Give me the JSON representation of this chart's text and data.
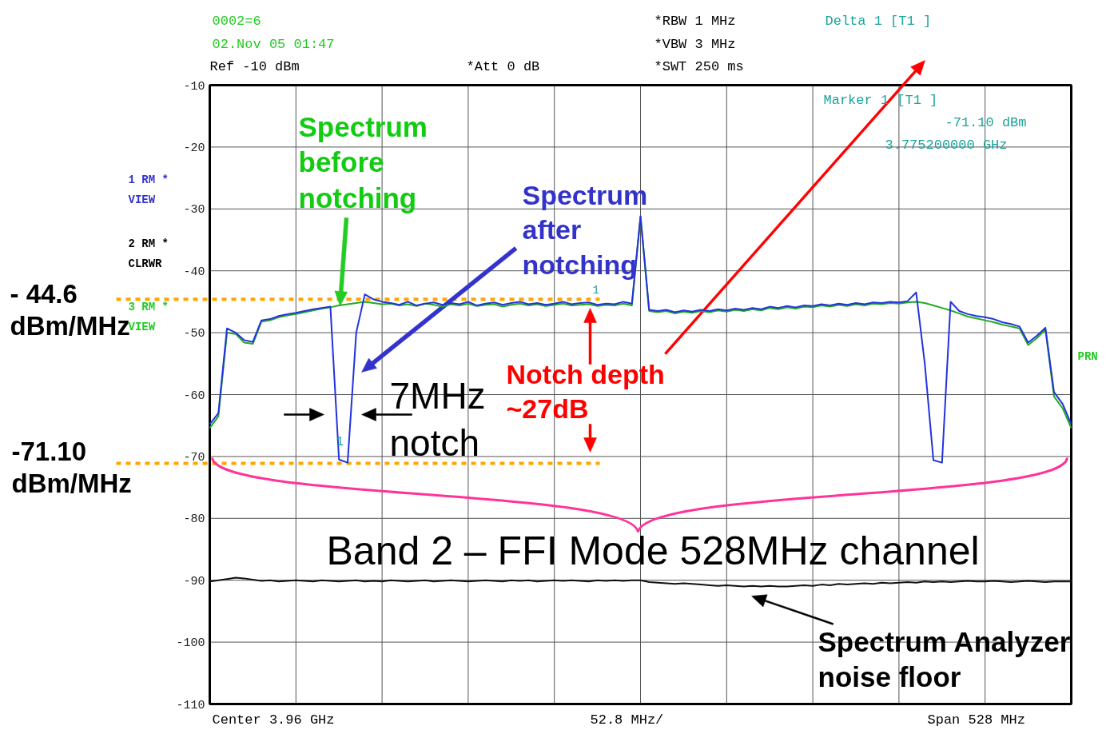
{
  "chart_data": {
    "type": "line",
    "categories": [
      null,
      null,
      null,
      null,
      null,
      null,
      null,
      null,
      null,
      null,
      null,
      null,
      null,
      null,
      null,
      null,
      null,
      null,
      null,
      null,
      null,
      null,
      null,
      null,
      null,
      null,
      null,
      null,
      null,
      null,
      null,
      null,
      null,
      null,
      null,
      null,
      null,
      null,
      null,
      null,
      null,
      null,
      null,
      null,
      null,
      null,
      null,
      null,
      null,
      null,
      null,
      null,
      null,
      null,
      null,
      null,
      null,
      null,
      null,
      null,
      null,
      null,
      null,
      null,
      null,
      null,
      null,
      null,
      null,
      null,
      null,
      null,
      null,
      null,
      null,
      null,
      null,
      null,
      null,
      null,
      null,
      null,
      null,
      null,
      null,
      null,
      null,
      null,
      null,
      null,
      null,
      null,
      null,
      null,
      null,
      null,
      null,
      null,
      null,
      null,
      null
    ],
    "ylim": [
      -110,
      -10
    ],
    "yticks": [
      -10,
      -20,
      -30,
      -40,
      -50,
      -60,
      -70,
      -80,
      -90,
      -100,
      -110
    ],
    "tick_labels": "y",
    "grid": true,
    "marker": "none",
    "line_style": "solid",
    "series": [
      {
        "color": "#22aa22",
        "values": [
          -65.4,
          -63.5,
          -50.0,
          -50.2,
          -51.6,
          -51.8,
          -48.2,
          -48.0,
          -47.5,
          -47.2,
          -47.0,
          -46.7,
          -46.4,
          -46.1,
          -45.9,
          -45.6,
          -45.4,
          -45.2,
          -45.0,
          -45.2,
          -45.4,
          -45.3,
          -45.6,
          -45.4,
          -45.7,
          -45.3,
          -45.5,
          -45.8,
          -45.4,
          -45.6,
          -45.3,
          -45.7,
          -45.5,
          -45.4,
          -45.8,
          -45.5,
          -45.3,
          -45.6,
          -45.4,
          -45.7,
          -45.5,
          -45.3,
          -45.6,
          -45.5,
          -45.4,
          -45.7,
          -45.5,
          -45.6,
          -45.3,
          -45.6,
          -31.2,
          -46.5,
          -46.7,
          -46.5,
          -46.9,
          -46.6,
          -46.8,
          -46.5,
          -46.7,
          -46.4,
          -46.6,
          -46.3,
          -46.5,
          -46.2,
          -46.4,
          -46.0,
          -46.2,
          -45.9,
          -46.1,
          -45.8,
          -45.9,
          -45.6,
          -45.8,
          -45.5,
          -45.7,
          -45.4,
          -45.6,
          -45.3,
          -45.4,
          -45.2,
          -45.3,
          -45.1,
          -45.0,
          -45.2,
          -45.6,
          -46.0,
          -46.4,
          -46.9,
          -47.4,
          -47.7,
          -48.0,
          -48.3,
          -48.7,
          -49.0,
          -49.3,
          -52.0,
          -50.9,
          -49.5,
          -60.3,
          -62.2,
          -65.4
        ]
      },
      {
        "color": "#2233dd",
        "values": [
          -64.8,
          -63.0,
          -49.3,
          -50.0,
          -51.2,
          -51.5,
          -48.0,
          -47.8,
          -47.3,
          -47.0,
          -46.8,
          -46.5,
          -46.2,
          -46.0,
          -45.8,
          -70.5,
          -71.0,
          -50.0,
          -43.8,
          -44.6,
          -45.0,
          -45.2,
          -45.5,
          -45.0,
          -45.6,
          -45.3,
          -45.1,
          -45.5,
          -45.2,
          -45.4,
          -45.0,
          -45.6,
          -45.3,
          -45.1,
          -45.5,
          -45.2,
          -45.0,
          -45.4,
          -45.2,
          -45.5,
          -45.3,
          -45.0,
          -45.4,
          -45.2,
          -45.1,
          -45.5,
          -45.3,
          -45.4,
          -45.0,
          -45.3,
          -31.2,
          -46.3,
          -46.5,
          -46.3,
          -46.7,
          -46.4,
          -46.6,
          -46.3,
          -46.5,
          -46.2,
          -46.4,
          -46.1,
          -46.3,
          -46.0,
          -46.2,
          -45.8,
          -46.0,
          -45.7,
          -45.9,
          -45.6,
          -45.7,
          -45.4,
          -45.6,
          -45.3,
          -45.5,
          -45.2,
          -45.4,
          -45.1,
          -45.2,
          -45.0,
          -45.1,
          -44.9,
          -43.5,
          -55.0,
          -70.6,
          -71.0,
          -45.0,
          -46.5,
          -47.0,
          -47.3,
          -47.5,
          -47.8,
          -48.3,
          -48.6,
          -49.0,
          -51.6,
          -50.5,
          -49.2,
          -59.6,
          -61.5,
          -64.8
        ]
      },
      {
        "color": "#111111",
        "values": [
          -90.2,
          -90.0,
          -89.8,
          -89.6,
          -89.7,
          -89.9,
          -90.1,
          -90.0,
          -90.2,
          -90.1,
          -90.0,
          -90.1,
          -90.2,
          -90.0,
          -90.1,
          -90.2,
          -90.1,
          -90.0,
          -90.2,
          -90.1,
          -90.2,
          -90.0,
          -90.1,
          -90.2,
          -90.1,
          -90.0,
          -90.2,
          -90.1,
          -90.0,
          -90.1,
          -90.2,
          -90.1,
          -90.0,
          -90.1,
          -90.2,
          -90.0,
          -90.1,
          -90.0,
          -90.2,
          -90.1,
          -90.0,
          -90.1,
          -90.0,
          -90.1,
          -90.2,
          -90.0,
          -90.1,
          -90.0,
          -90.1,
          -90.0,
          -90.0,
          -90.3,
          -90.4,
          -90.5,
          -90.6,
          -90.5,
          -90.6,
          -90.7,
          -90.8,
          -90.9,
          -90.8,
          -90.9,
          -91.0,
          -90.9,
          -91.0,
          -90.9,
          -91.0,
          -91.0,
          -90.9,
          -90.8,
          -90.9,
          -90.7,
          -90.8,
          -90.6,
          -90.7,
          -90.6,
          -90.5,
          -90.6,
          -90.4,
          -90.5,
          -90.4,
          -90.3,
          -90.4,
          -90.2,
          -90.3,
          -90.2,
          -90.3,
          -90.2,
          -90.1,
          -90.2,
          -90.2,
          -90.1,
          -90.2,
          -90.3,
          -90.2,
          -90.1,
          -90.2,
          -90.3,
          -90.2,
          -90.2,
          -90.2
        ]
      }
    ],
    "ref_lines": [
      {
        "axis": "y",
        "value": -44.6,
        "label": "- 44.6\ndBm/MHz",
        "color": "#ffa500",
        "line_style": "dashed"
      },
      {
        "axis": "y",
        "value": -71.1,
        "label": "-71.10\ndBm/MHz",
        "color": "#ffa500",
        "line_style": "dashed"
      }
    ],
    "annotations": [
      "0002=6",
      "02.Nov 05 01:47",
      "Ref -10 dBm",
      "*Att   0 dB",
      "*RBW 1 MHz",
      "*VBW 3 MHz",
      "*SWT 250 ms",
      "Delta 1 [T1 ]",
      "Marker 1 [T1 ]",
      "-71.10 dBm",
      "3.775200000 GHz",
      "1 RM *",
      "VIEW",
      "2 RM *",
      "CLRWR",
      "3 RM *",
      "VIEW",
      "PRN",
      "Spectrum\nbefore\nnotching",
      "Spectrum\nafter\nnotching",
      "Notch depth\n~27dB",
      "7MHz\nnotch",
      "Band 2 – FFI Mode 528MHz channel",
      "Spectrum Analyzer\nnoise floor",
      "Center 3.96 GHz",
      "52.8 MHz/",
      "Span 528 MHz",
      "1",
      "1"
    ]
  }
}
